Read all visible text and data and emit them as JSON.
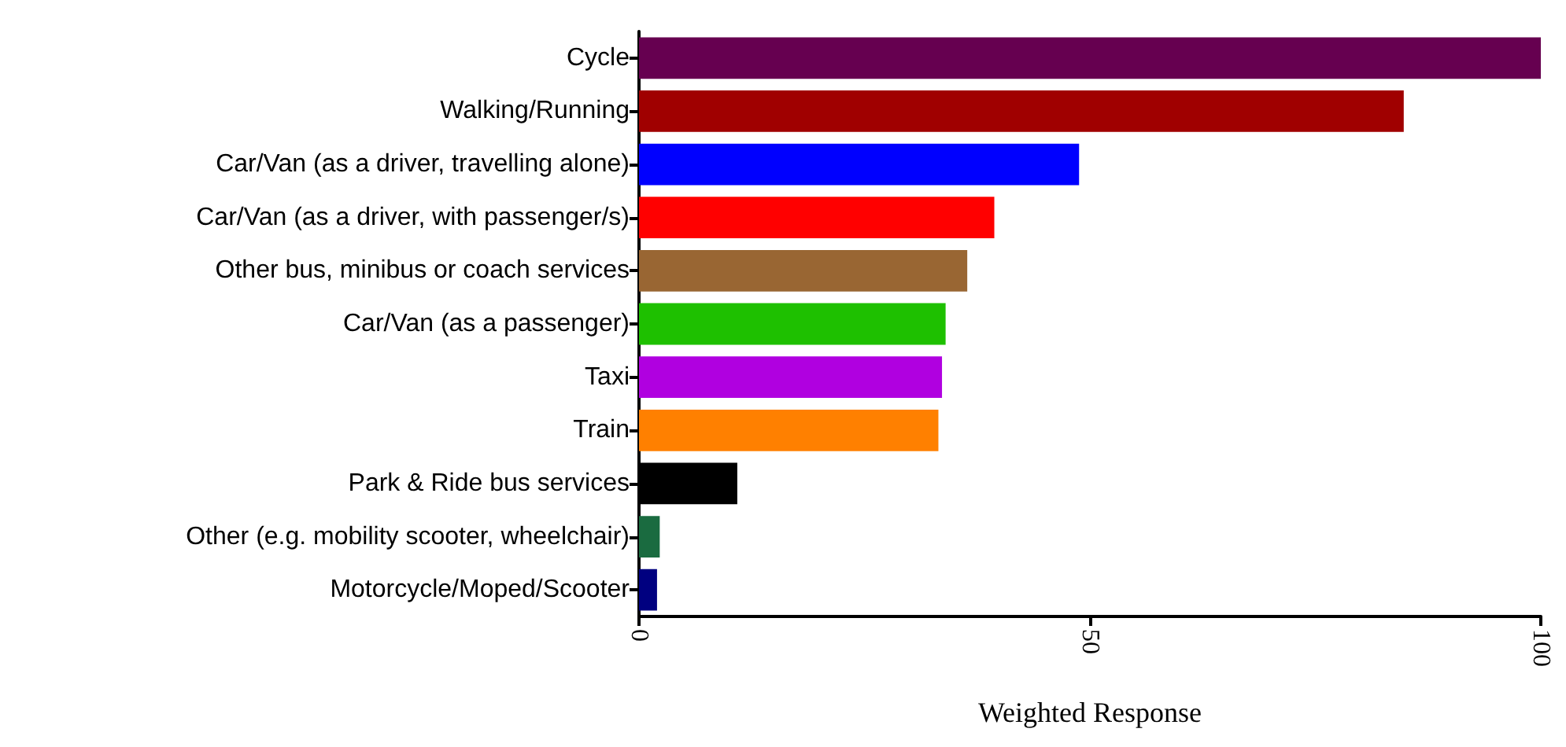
{
  "chart_data": {
    "type": "bar",
    "orientation": "horizontal",
    "xlabel": "Weighted Response",
    "categories": [
      "Cycle",
      "Walking/Running",
      "Car/Van (as a driver, travelling alone)",
      "Car/Van (as a driver, with passenger/s)",
      "Other bus, minibus or coach services",
      "Car/Van (as a passenger)",
      "Taxi",
      "Train",
      "Park & Ride bus services",
      "Other (e.g. mobility scooter, wheelchair)",
      "Motorcycle/Moped/Scooter"
    ],
    "values": [
      100,
      84.8,
      48.8,
      39.4,
      36.4,
      34.0,
      33.6,
      33.2,
      10.9,
      2.3,
      2.0
    ],
    "colors": [
      "#660050",
      "#a00000",
      "#0000ff",
      "#ff0000",
      "#996633",
      "#1ec000",
      "#b000e0",
      "#ff8000",
      "#000000",
      "#1a6b40",
      "#000080"
    ],
    "xlim": [
      0,
      100
    ],
    "xticks": [
      0,
      50,
      100
    ]
  }
}
